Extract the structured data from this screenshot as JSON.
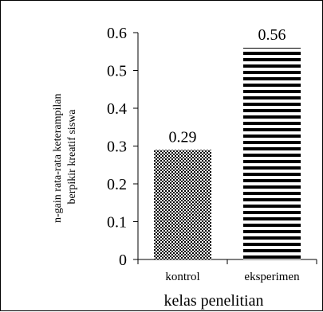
{
  "chart_data": {
    "type": "bar",
    "categories": [
      "kontrol",
      "eksperimen"
    ],
    "values": [
      0.29,
      0.56
    ],
    "value_labels": [
      "0.29",
      "0.56"
    ],
    "xlabel": "kelas penelitian",
    "ylabel_lines": [
      "n-gain  rata-rata keterampilan",
      "berpikir kreatif siswa"
    ],
    "ylim": [
      0,
      0.6
    ],
    "yticks": [
      0,
      0.1,
      0.2,
      0.3,
      0.4,
      0.5,
      0.6
    ],
    "ytick_labels": [
      "0",
      "0.1",
      "0.2",
      "0.3",
      "0.4",
      "0.5",
      "0.6"
    ],
    "grid": false,
    "legend": "none",
    "patterns": [
      "checkered",
      "horizontal-stripes"
    ],
    "colors": {
      "bar_fill": "#000000",
      "background": "#ffffff",
      "axis": "#000000"
    }
  }
}
